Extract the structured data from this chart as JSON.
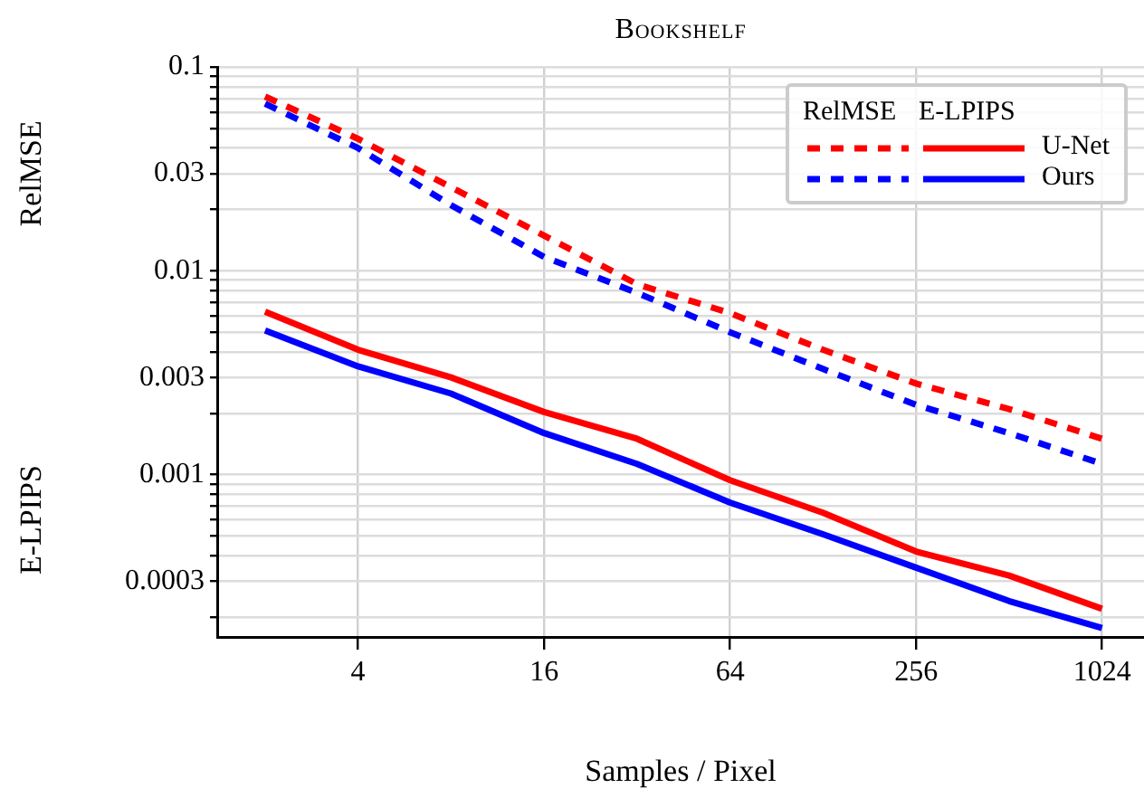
{
  "chart_data": {
    "type": "line",
    "title": "Bookshelf",
    "xlabel": "Samples / Pixel",
    "ylabel": "RelMSE",
    "annotations": [
      "E-LPIPS"
    ],
    "log": "xy",
    "grid": true,
    "legend": "top right",
    "marker": "none",
    "x": [
      2,
      4,
      8,
      16,
      32,
      64,
      128,
      256,
      512,
      1024
    ],
    "xlim": [
      1.4,
      1400
    ],
    "xticks": [
      4,
      16,
      64,
      256,
      1024
    ],
    "ylim": [
      0.00016,
      0.1
    ],
    "yticks": [
      {
        "value": 0.0002,
        "label": null
      },
      0.0003,
      {
        "value": 0.0004,
        "label": null
      },
      {
        "value": 0.0005,
        "label": null
      },
      {
        "value": 0.0006,
        "label": null
      },
      {
        "value": 0.0007,
        "label": null
      },
      {
        "value": 0.0008,
        "label": null
      },
      {
        "value": 0.0009,
        "label": null
      },
      0.001,
      {
        "value": 0.002,
        "label": null
      },
      0.003,
      {
        "value": 0.004,
        "label": null
      },
      {
        "value": 0.005,
        "label": null
      },
      {
        "value": 0.006,
        "label": null
      },
      {
        "value": 0.007,
        "label": null
      },
      {
        "value": 0.008,
        "label": null
      },
      {
        "value": 0.009,
        "label": null
      },
      0.01,
      {
        "value": 0.02,
        "label": null
      },
      0.03,
      {
        "value": 0.04,
        "label": null
      },
      {
        "value": 0.05,
        "label": null
      },
      {
        "value": 0.06,
        "label": null
      },
      {
        "value": 0.07,
        "label": null
      },
      {
        "value": 0.08,
        "label": null
      },
      {
        "value": 0.09,
        "label": null
      },
      0.1
    ],
    "series": [
      {
        "color": "#ff0000",
        "line_style": "dashed",
        "values": [
          0.0716,
          0.0444,
          0.0257,
          0.0149,
          0.0086,
          0.0062,
          0.0041,
          0.0028,
          0.0021,
          0.0015
        ]
      },
      {
        "color": "#0000ff",
        "line_style": "dashed",
        "values": [
          0.066,
          0.04,
          0.021,
          0.0117,
          0.0078,
          0.005,
          0.0033,
          0.0022,
          0.0016,
          0.00113
        ]
      },
      {
        "name": "U-Net",
        "color": "#ff0000",
        "line_style": "solid",
        "values": [
          0.0063,
          0.0041,
          0.003,
          0.00203,
          0.0015,
          0.00094,
          0.00065,
          0.00042,
          0.00032,
          0.00022
        ]
      },
      {
        "name": "Ours",
        "color": "#0000ff",
        "line_style": "solid",
        "values": [
          0.0051,
          0.0034,
          0.0025,
          0.0016,
          0.00113,
          0.00073,
          0.00051,
          0.00035,
          0.00024,
          0.000177
        ]
      }
    ]
  }
}
